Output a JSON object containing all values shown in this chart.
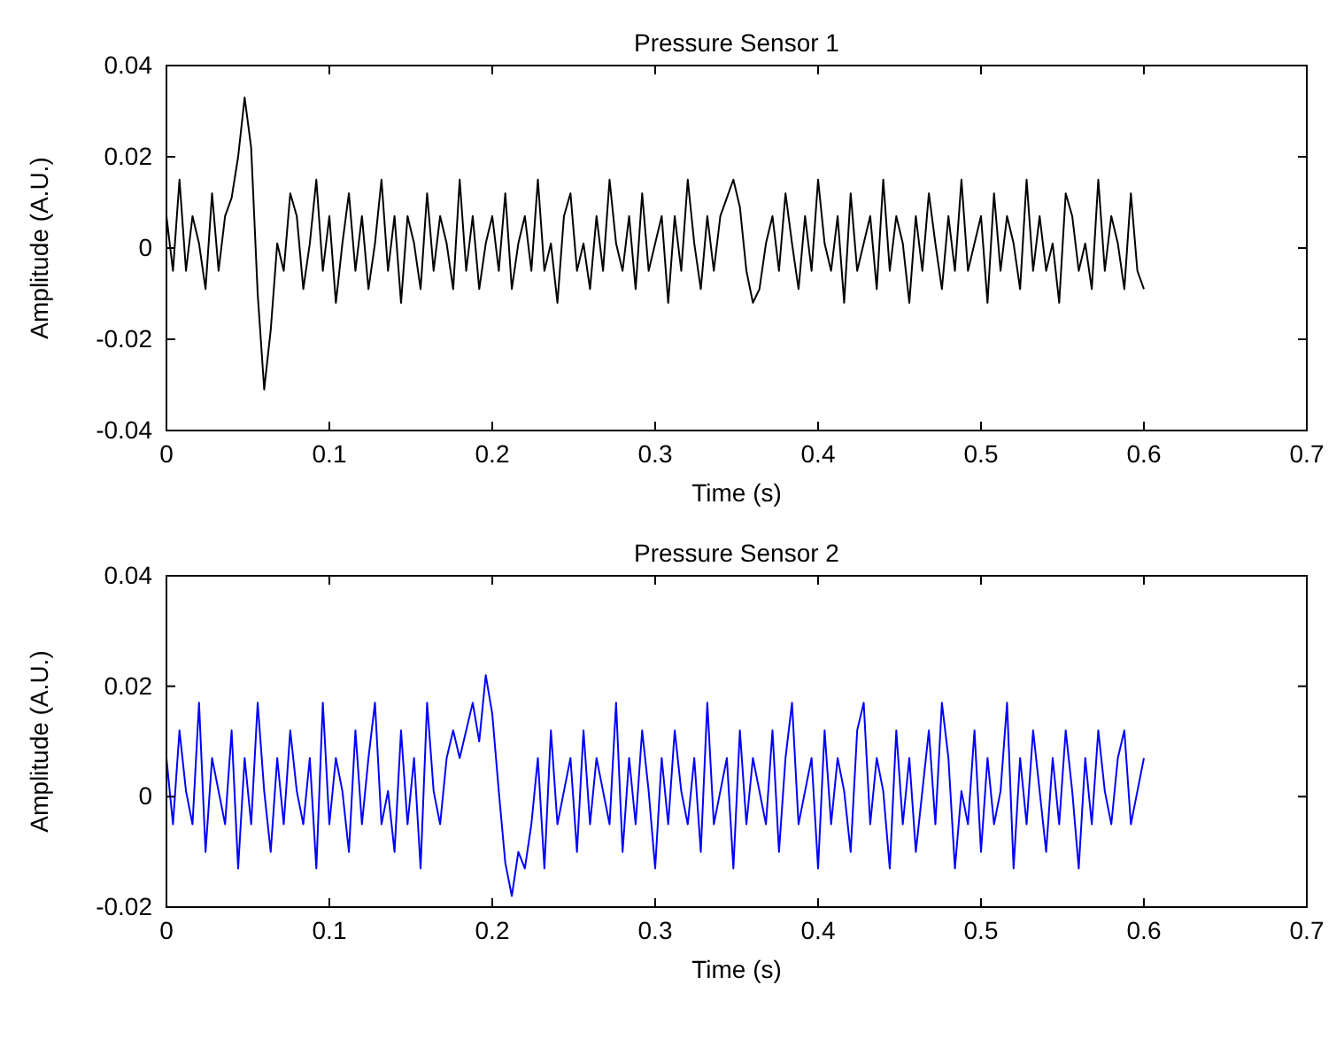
{
  "chart_data": [
    {
      "type": "line",
      "title": "Pressure Sensor 1",
      "xlabel": "Time (s)",
      "ylabel": "Amplitude (A.U.)",
      "x": [
        0,
        0.004,
        0.008,
        0.012,
        0.016,
        0.02,
        0.024,
        0.028,
        0.032,
        0.036,
        0.04,
        0.044,
        0.048,
        0.052,
        0.056,
        0.06,
        0.064,
        0.068,
        0.072,
        0.076,
        0.08,
        0.084,
        0.088,
        0.092,
        0.096,
        0.1,
        0.104,
        0.108,
        0.112,
        0.116,
        0.12,
        0.124,
        0.128,
        0.132,
        0.136,
        0.14,
        0.144,
        0.148,
        0.152,
        0.156,
        0.16,
        0.164,
        0.168,
        0.172,
        0.176,
        0.18,
        0.184,
        0.188,
        0.192,
        0.196,
        0.2,
        0.204,
        0.208,
        0.212,
        0.216,
        0.22,
        0.224,
        0.228,
        0.232,
        0.236,
        0.24,
        0.244,
        0.248,
        0.252,
        0.256,
        0.26,
        0.264,
        0.268,
        0.272,
        0.276,
        0.28,
        0.284,
        0.288,
        0.292,
        0.296,
        0.3,
        0.304,
        0.308,
        0.312,
        0.316,
        0.32,
        0.324,
        0.328,
        0.332,
        0.336,
        0.34,
        0.344,
        0.348,
        0.352,
        0.356,
        0.36,
        0.364,
        0.368,
        0.372,
        0.376,
        0.38,
        0.384,
        0.388,
        0.392,
        0.396,
        0.4,
        0.404,
        0.408,
        0.412,
        0.416,
        0.42,
        0.424,
        0.428,
        0.432,
        0.436,
        0.44,
        0.444,
        0.448,
        0.452,
        0.456,
        0.46,
        0.464,
        0.468,
        0.472,
        0.476,
        0.48,
        0.484,
        0.488,
        0.492,
        0.496,
        0.5,
        0.504,
        0.508,
        0.512,
        0.516,
        0.52,
        0.524,
        0.528,
        0.532,
        0.536,
        0.54,
        0.544,
        0.548,
        0.552,
        0.556,
        0.56,
        0.564,
        0.568,
        0.572,
        0.576,
        0.58,
        0.584,
        0.588,
        0.592,
        0.596,
        0.6
      ],
      "series": [
        {
          "color": "#000000",
          "values": [
            0.007,
            -0.005,
            0.015,
            -0.005,
            0.007,
            0.001,
            -0.009,
            0.012,
            -0.005,
            0.007,
            0.011,
            0.02,
            0.033,
            0.022,
            -0.01,
            -0.031,
            -0.018,
            0.001,
            -0.005,
            0.012,
            0.007,
            -0.009,
            0.001,
            0.015,
            -0.005,
            0.007,
            -0.012,
            0.001,
            0.012,
            -0.005,
            0.007,
            -0.009,
            0.001,
            0.015,
            -0.005,
            0.007,
            -0.012,
            0.007,
            0.001,
            -0.009,
            0.012,
            -0.005,
            0.007,
            0.001,
            -0.009,
            0.015,
            -0.005,
            0.007,
            -0.009,
            0.001,
            0.007,
            -0.005,
            0.012,
            -0.009,
            0.001,
            0.007,
            -0.005,
            0.015,
            -0.005,
            0.001,
            -0.012,
            0.007,
            0.012,
            -0.005,
            0.001,
            -0.009,
            0.007,
            -0.005,
            0.015,
            0.001,
            -0.005,
            0.007,
            -0.009,
            0.012,
            -0.005,
            0.001,
            0.007,
            -0.012,
            0.007,
            -0.005,
            0.015,
            0.001,
            -0.009,
            0.007,
            -0.005,
            0.007,
            0.011,
            0.015,
            0.009,
            -0.005,
            -0.012,
            -0.009,
            0.001,
            0.007,
            -0.005,
            0.012,
            0.001,
            -0.009,
            0.007,
            -0.005,
            0.015,
            0.001,
            -0.005,
            0.007,
            -0.012,
            0.012,
            -0.005,
            0.001,
            0.007,
            -0.009,
            0.015,
            -0.005,
            0.007,
            0.001,
            -0.012,
            0.007,
            -0.005,
            0.012,
            0.001,
            -0.009,
            0.007,
            -0.005,
            0.015,
            -0.005,
            0.001,
            0.007,
            -0.012,
            0.012,
            -0.005,
            0.007,
            0.001,
            -0.009,
            0.015,
            -0.005,
            0.007,
            -0.005,
            0.001,
            -0.012,
            0.012,
            0.007,
            -0.005,
            0.001,
            -0.009,
            0.015,
            -0.005,
            0.007,
            0.001,
            -0.009,
            0.012,
            -0.005,
            -0.009
          ]
        }
      ],
      "xlim": [
        0,
        0.7
      ],
      "ylim": [
        -0.04,
        0.04
      ],
      "xticks": [
        0,
        0.1,
        0.2,
        0.3,
        0.4,
        0.5,
        0.6,
        0.7
      ],
      "yticks": [
        -0.04,
        -0.02,
        0,
        0.02,
        0.04
      ]
    },
    {
      "type": "line",
      "title": "Pressure Sensor 2",
      "xlabel": "Time (s)",
      "ylabel": "Amplitude (A.U.)",
      "x": [
        0,
        0.004,
        0.008,
        0.012,
        0.016,
        0.02,
        0.024,
        0.028,
        0.032,
        0.036,
        0.04,
        0.044,
        0.048,
        0.052,
        0.056,
        0.06,
        0.064,
        0.068,
        0.072,
        0.076,
        0.08,
        0.084,
        0.088,
        0.092,
        0.096,
        0.1,
        0.104,
        0.108,
        0.112,
        0.116,
        0.12,
        0.124,
        0.128,
        0.132,
        0.136,
        0.14,
        0.144,
        0.148,
        0.152,
        0.156,
        0.16,
        0.164,
        0.168,
        0.172,
        0.176,
        0.18,
        0.184,
        0.188,
        0.192,
        0.196,
        0.2,
        0.204,
        0.208,
        0.212,
        0.216,
        0.22,
        0.224,
        0.228,
        0.232,
        0.236,
        0.24,
        0.244,
        0.248,
        0.252,
        0.256,
        0.26,
        0.264,
        0.268,
        0.272,
        0.276,
        0.28,
        0.284,
        0.288,
        0.292,
        0.296,
        0.3,
        0.304,
        0.308,
        0.312,
        0.316,
        0.32,
        0.324,
        0.328,
        0.332,
        0.336,
        0.34,
        0.344,
        0.348,
        0.352,
        0.356,
        0.36,
        0.364,
        0.368,
        0.372,
        0.376,
        0.38,
        0.384,
        0.388,
        0.392,
        0.396,
        0.4,
        0.404,
        0.408,
        0.412,
        0.416,
        0.42,
        0.424,
        0.428,
        0.432,
        0.436,
        0.44,
        0.444,
        0.448,
        0.452,
        0.456,
        0.46,
        0.464,
        0.468,
        0.472,
        0.476,
        0.48,
        0.484,
        0.488,
        0.492,
        0.496,
        0.5,
        0.504,
        0.508,
        0.512,
        0.516,
        0.52,
        0.524,
        0.528,
        0.532,
        0.536,
        0.54,
        0.544,
        0.548,
        0.552,
        0.556,
        0.56,
        0.564,
        0.568,
        0.572,
        0.576,
        0.58,
        0.584,
        0.588,
        0.592,
        0.596,
        0.6
      ],
      "series": [
        {
          "color": "#0000ff",
          "values": [
            0.007,
            -0.005,
            0.012,
            0.001,
            -0.005,
            0.017,
            -0.01,
            0.007,
            0.001,
            -0.005,
            0.012,
            -0.013,
            0.007,
            -0.005,
            0.017,
            0.001,
            -0.01,
            0.007,
            -0.005,
            0.012,
            0.001,
            -0.005,
            0.007,
            -0.013,
            0.017,
            -0.005,
            0.007,
            0.001,
            -0.01,
            0.012,
            -0.005,
            0.007,
            0.017,
            -0.005,
            0.001,
            -0.01,
            0.012,
            -0.005,
            0.007,
            -0.013,
            0.017,
            0.001,
            -0.005,
            0.007,
            0.012,
            0.007,
            0.012,
            0.017,
            0.01,
            0.022,
            0.015,
            0.001,
            -0.012,
            -0.018,
            -0.01,
            -0.013,
            -0.005,
            0.007,
            -0.013,
            0.012,
            -0.005,
            0.001,
            0.007,
            -0.01,
            0.012,
            -0.005,
            0.007,
            0.001,
            -0.005,
            0.017,
            -0.01,
            0.007,
            -0.005,
            0.012,
            0.001,
            -0.013,
            0.007,
            -0.005,
            0.012,
            0.001,
            -0.005,
            0.007,
            -0.01,
            0.017,
            -0.005,
            0.001,
            0.007,
            -0.013,
            0.012,
            -0.005,
            0.007,
            0.001,
            -0.005,
            0.012,
            -0.01,
            0.007,
            0.017,
            -0.005,
            0.001,
            0.007,
            -0.013,
            0.012,
            -0.005,
            0.007,
            0.001,
            -0.01,
            0.012,
            0.017,
            -0.005,
            0.007,
            0.001,
            -0.013,
            0.012,
            -0.005,
            0.007,
            -0.01,
            0.001,
            0.012,
            -0.005,
            0.017,
            0.007,
            -0.013,
            0.001,
            -0.005,
            0.012,
            -0.01,
            0.007,
            -0.005,
            0.001,
            0.017,
            -0.013,
            0.007,
            -0.005,
            0.012,
            0.001,
            -0.01,
            0.007,
            -0.005,
            0.012,
            0.001,
            -0.013,
            0.007,
            -0.005,
            0.012,
            0.001,
            -0.005,
            0.007,
            0.012,
            -0.005,
            0.001,
            0.007
          ]
        }
      ],
      "xlim": [
        0,
        0.7
      ],
      "ylim": [
        -0.02,
        0.04
      ],
      "xticks": [
        0,
        0.1,
        0.2,
        0.3,
        0.4,
        0.5,
        0.6,
        0.7
      ],
      "yticks": [
        -0.02,
        0,
        0.02,
        0.04
      ]
    }
  ]
}
